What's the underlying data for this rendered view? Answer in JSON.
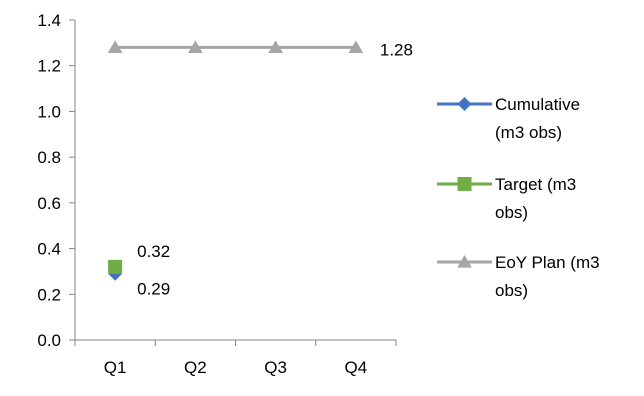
{
  "chart_data": {
    "type": "line",
    "title": "",
    "xlabel": "",
    "ylabel": "",
    "categories": [
      "Q1",
      "Q2",
      "Q3",
      "Q4"
    ],
    "ylim": [
      0,
      1.4
    ],
    "yticks": [
      0.0,
      0.2,
      0.4,
      0.6,
      0.8,
      1.0,
      1.2,
      1.4
    ],
    "ytick_labels": [
      "0.0",
      "0.2",
      "0.4",
      "0.6",
      "0.8",
      "1.0",
      "1.2",
      "1.4"
    ],
    "grid": false,
    "legend_position": "right",
    "series": [
      {
        "name": "Cumulative (m3 obs)",
        "legend_lines": [
          "Cumulative",
          "(m3 obs)"
        ],
        "color": "#4472C4",
        "marker": "diamond",
        "values": [
          0.29,
          null,
          null,
          null
        ],
        "data_labels": [
          "0.29",
          null,
          null,
          null
        ]
      },
      {
        "name": "Target (m3 obs)",
        "legend_lines": [
          "Target (m3",
          "obs)"
        ],
        "color": "#70AD47",
        "marker": "square",
        "values": [
          0.32,
          null,
          null,
          null
        ],
        "data_labels": [
          "0.32",
          null,
          null,
          null
        ]
      },
      {
        "name": "EoY Plan (m3 obs)",
        "legend_lines": [
          "EoY Plan (m3",
          "obs)"
        ],
        "color": "#A5A5A5",
        "marker": "triangle",
        "values": [
          1.28,
          1.28,
          1.28,
          1.28
        ],
        "data_labels": [
          null,
          null,
          null,
          "1.28"
        ]
      }
    ]
  }
}
